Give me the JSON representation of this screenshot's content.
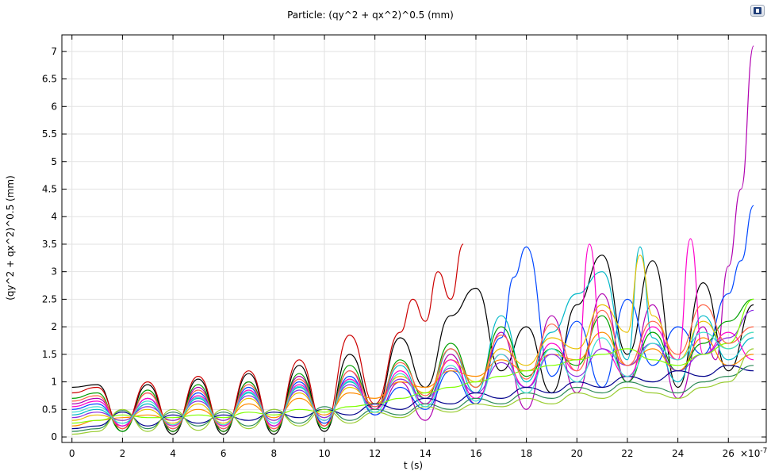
{
  "chart_data": {
    "type": "line",
    "title": "Particle: (qy^2 + qx^2)^0.5 (mm)",
    "xlabel": "t (s)",
    "ylabel": "(qy^2 + qx^2)^0.5 (mm)",
    "x_multiplier": "×10",
    "x_multiplier_exponent": "-7",
    "xlim": [
      -0.4,
      27.5
    ],
    "ylim": [
      -0.1,
      7.3
    ],
    "x_ticks": [
      0,
      2,
      4,
      6,
      8,
      10,
      12,
      14,
      16,
      18,
      20,
      22,
      24,
      26
    ],
    "y_ticks": [
      0,
      0.5,
      1,
      1.5,
      2,
      2.5,
      3,
      3.5,
      4,
      4.5,
      5,
      5.5,
      6,
      6.5,
      7
    ],
    "x_tick_labels": [
      "0",
      "2",
      "4",
      "6",
      "8",
      "10",
      "12",
      "14",
      "16",
      "18",
      "20",
      "22",
      "24",
      "26"
    ],
    "y_tick_labels": [
      "0",
      "0.5",
      "1",
      "1.5",
      "2",
      "2.5",
      "3",
      "3.5",
      "4",
      "4.5",
      "5",
      "5.5",
      "6",
      "6.5",
      "7"
    ],
    "grid": true,
    "legend": "none",
    "series": [
      {
        "color": "#000000",
        "x": [
          0,
          1,
          2,
          3,
          4,
          5,
          6,
          7,
          8,
          9,
          10,
          11,
          12,
          13,
          14,
          15,
          16,
          17,
          18,
          19,
          20,
          21,
          22,
          23,
          24,
          25,
          26,
          27
        ],
        "y": [
          0.9,
          0.95,
          0.1,
          0.95,
          0.05,
          1.05,
          0.05,
          1.15,
          0.05,
          1.3,
          0.1,
          1.5,
          0.5,
          1.8,
          0.9,
          2.2,
          2.7,
          1.2,
          2.0,
          0.8,
          2.4,
          3.3,
          1.5,
          3.2,
          0.9,
          2.8,
          1.2,
          2.4
        ]
      },
      {
        "color": "#cc0000",
        "x": [
          0,
          1,
          2,
          3,
          4,
          5,
          6,
          7,
          8,
          9,
          10,
          11,
          12,
          13,
          13.5,
          14,
          14.5,
          15,
          15.5
        ],
        "y": [
          0.8,
          0.9,
          0.15,
          1.0,
          0.1,
          1.1,
          0.1,
          1.2,
          0.1,
          1.4,
          0.2,
          1.85,
          0.6,
          1.9,
          2.5,
          2.1,
          3.0,
          2.5,
          3.5
        ]
      },
      {
        "color": "#b000b0",
        "x": [
          0,
          1,
          2,
          3,
          4,
          5,
          6,
          7,
          8,
          9,
          10,
          11,
          12,
          13,
          14,
          15,
          16,
          17,
          18,
          19,
          20,
          21,
          22,
          23,
          24,
          25,
          25.5,
          26,
          26.5,
          27
        ],
        "y": [
          0.6,
          0.7,
          0.2,
          0.8,
          0.1,
          0.9,
          0.1,
          1.0,
          0.15,
          1.1,
          0.2,
          1.2,
          0.4,
          1.0,
          0.3,
          1.5,
          0.6,
          1.9,
          0.5,
          2.2,
          0.8,
          2.6,
          1.0,
          2.4,
          0.7,
          2.0,
          1.4,
          3.1,
          4.5,
          7.1
        ]
      },
      {
        "color": "#0047ff",
        "x": [
          0,
          1,
          2,
          3,
          4,
          5,
          6,
          7,
          8,
          9,
          10,
          11,
          12,
          13,
          14,
          15,
          16,
          17,
          17.5,
          18,
          19,
          20,
          21,
          22,
          23,
          24,
          25,
          26,
          26.5,
          27
        ],
        "y": [
          0.5,
          0.6,
          0.2,
          0.7,
          0.15,
          0.8,
          0.15,
          0.9,
          0.2,
          1.0,
          0.25,
          1.1,
          0.4,
          0.9,
          0.5,
          1.2,
          0.6,
          1.8,
          2.9,
          3.45,
          1.1,
          2.1,
          0.9,
          2.5,
          1.3,
          2.0,
          1.5,
          2.6,
          3.2,
          4.2
        ]
      },
      {
        "color": "#00b8c8",
        "x": [
          0,
          1,
          2,
          3,
          4,
          5,
          6,
          7,
          8,
          9,
          10,
          11,
          12,
          13,
          14,
          15,
          16,
          17,
          18,
          19,
          20,
          21,
          22,
          22.5,
          23,
          24,
          25,
          26,
          27
        ],
        "y": [
          0.4,
          0.5,
          0.25,
          0.6,
          0.2,
          0.7,
          0.2,
          0.8,
          0.2,
          0.9,
          0.3,
          1.0,
          0.5,
          1.3,
          0.6,
          1.6,
          0.8,
          2.2,
          1.0,
          1.9,
          2.6,
          3.0,
          1.4,
          3.45,
          1.8,
          1.0,
          2.2,
          1.4,
          1.8
        ]
      },
      {
        "color": "#00a000",
        "x": [
          0,
          1,
          2,
          3,
          4,
          5,
          6,
          7,
          8,
          9,
          10,
          11,
          12,
          13,
          14,
          15,
          16,
          17,
          18,
          19,
          20,
          21,
          22,
          23,
          24,
          25,
          26,
          27
        ],
        "y": [
          0.7,
          0.8,
          0.1,
          0.85,
          0.1,
          0.95,
          0.1,
          1.0,
          0.1,
          1.15,
          0.15,
          1.3,
          0.5,
          1.4,
          0.7,
          1.7,
          0.9,
          2.0,
          1.1,
          1.6,
          1.3,
          2.2,
          1.0,
          1.9,
          1.2,
          1.7,
          2.1,
          2.5
        ]
      },
      {
        "color": "#e8c000",
        "x": [
          0,
          1,
          2,
          3,
          4,
          5,
          6,
          7,
          8,
          9,
          10,
          11,
          12,
          13,
          14,
          15,
          16,
          17,
          18,
          19,
          20,
          21,
          22,
          22.5,
          23,
          24,
          25,
          26,
          27
        ],
        "y": [
          0.3,
          0.4,
          0.3,
          0.5,
          0.25,
          0.6,
          0.25,
          0.7,
          0.3,
          0.8,
          0.35,
          0.9,
          0.6,
          1.1,
          0.8,
          1.4,
          1.0,
          1.6,
          1.3,
          1.8,
          1.6,
          2.4,
          1.9,
          3.3,
          2.2,
          1.4,
          2.1,
          1.6,
          1.9
        ]
      },
      {
        "color": "#ff8c00",
        "x": [
          0,
          1,
          2,
          3,
          4,
          5,
          6,
          7,
          8,
          9,
          10,
          11,
          12,
          13,
          14,
          15,
          16,
          17,
          18,
          19,
          20,
          21,
          22,
          23,
          24,
          25,
          26,
          27
        ],
        "y": [
          0.2,
          0.3,
          0.35,
          0.4,
          0.3,
          0.5,
          0.3,
          0.6,
          0.35,
          0.7,
          0.4,
          0.8,
          0.7,
          1.0,
          0.9,
          1.2,
          1.1,
          1.4,
          1.2,
          1.5,
          1.4,
          1.9,
          1.3,
          1.6,
          1.2,
          1.8,
          1.3,
          1.5
        ]
      },
      {
        "color": "#ff00cc",
        "x": [
          0,
          1,
          2,
          3,
          4,
          5,
          6,
          7,
          8,
          9,
          10,
          11,
          12,
          13,
          14,
          15,
          16,
          17,
          18,
          19,
          20,
          20.5,
          21,
          22,
          23,
          24,
          24.5,
          25,
          26,
          27
        ],
        "y": [
          0.55,
          0.65,
          0.2,
          0.7,
          0.2,
          0.75,
          0.2,
          0.85,
          0.2,
          0.95,
          0.3,
          1.05,
          0.5,
          1.2,
          0.6,
          1.4,
          0.7,
          1.5,
          0.9,
          1.7,
          1.2,
          3.5,
          1.6,
          1.1,
          2.0,
          1.4,
          3.6,
          1.5,
          1.9,
          1.4
        ]
      },
      {
        "color": "#8a2be2",
        "x": [
          0,
          1,
          2,
          3,
          4,
          5,
          6,
          7,
          8,
          9,
          10,
          11,
          12,
          13,
          14,
          15,
          16,
          17,
          18,
          19,
          20,
          21,
          22,
          23,
          24,
          25,
          26,
          27
        ],
        "y": [
          0.35,
          0.45,
          0.3,
          0.55,
          0.3,
          0.65,
          0.3,
          0.75,
          0.3,
          0.85,
          0.35,
          0.95,
          0.55,
          1.05,
          0.7,
          1.25,
          0.8,
          1.35,
          0.9,
          1.5,
          1.1,
          1.6,
          1.3,
          1.7,
          1.2,
          1.5,
          1.8,
          2.3
        ]
      },
      {
        "color": "#7fff00",
        "x": [
          0,
          1,
          2,
          3,
          4,
          5,
          6,
          7,
          8,
          9,
          10,
          11,
          12,
          13,
          14,
          15,
          16,
          17,
          18,
          19,
          20,
          21,
          22,
          23,
          24,
          25,
          26,
          27
        ],
        "y": [
          0.25,
          0.3,
          0.4,
          0.35,
          0.35,
          0.4,
          0.35,
          0.45,
          0.4,
          0.5,
          0.45,
          0.55,
          0.6,
          0.7,
          0.8,
          0.9,
          1.0,
          1.1,
          1.2,
          1.3,
          1.4,
          1.5,
          1.6,
          1.4,
          1.3,
          1.5,
          1.7,
          2.5
        ]
      },
      {
        "color": "#00008b",
        "x": [
          0,
          1,
          2,
          3,
          4,
          5,
          6,
          7,
          8,
          9,
          10,
          11,
          12,
          13,
          14,
          15,
          16,
          17,
          18,
          19,
          20,
          21,
          22,
          23,
          24,
          25,
          26,
          27
        ],
        "y": [
          0.15,
          0.2,
          0.45,
          0.2,
          0.4,
          0.25,
          0.4,
          0.3,
          0.45,
          0.35,
          0.5,
          0.4,
          0.6,
          0.5,
          0.7,
          0.6,
          0.8,
          0.7,
          0.9,
          0.8,
          1.0,
          0.9,
          1.1,
          1.0,
          1.2,
          1.1,
          1.3,
          1.2
        ]
      },
      {
        "color": "#2e8b57",
        "x": [
          0,
          1,
          2,
          3,
          4,
          5,
          6,
          7,
          8,
          9,
          10,
          11,
          12,
          13,
          14,
          15,
          16,
          17,
          18,
          19,
          20,
          21,
          22,
          23,
          24,
          25,
          26,
          27
        ],
        "y": [
          0.1,
          0.15,
          0.48,
          0.15,
          0.45,
          0.2,
          0.45,
          0.2,
          0.5,
          0.25,
          0.55,
          0.3,
          0.5,
          0.4,
          0.6,
          0.5,
          0.7,
          0.6,
          0.8,
          0.7,
          0.9,
          0.8,
          1.0,
          0.9,
          0.8,
          1.0,
          1.1,
          1.3
        ]
      },
      {
        "color": "#9acd32",
        "x": [
          0,
          1,
          2,
          3,
          4,
          5,
          6,
          7,
          8,
          9,
          10,
          11,
          12,
          13,
          14,
          15,
          16,
          17,
          18,
          19,
          20,
          21,
          22,
          23,
          24,
          25,
          26,
          27
        ],
        "y": [
          0.05,
          0.1,
          0.5,
          0.1,
          0.5,
          0.12,
          0.5,
          0.15,
          0.5,
          0.2,
          0.5,
          0.25,
          0.45,
          0.35,
          0.55,
          0.45,
          0.6,
          0.55,
          0.7,
          0.6,
          0.8,
          0.7,
          0.9,
          0.8,
          0.7,
          0.9,
          1.0,
          1.6
        ]
      },
      {
        "color": "#ff6347",
        "x": [
          0,
          1,
          2,
          3,
          4,
          5,
          6,
          7,
          8,
          9,
          10,
          11,
          12,
          13,
          14,
          15,
          16,
          17,
          18,
          19,
          20,
          21,
          22,
          23,
          24,
          25,
          26,
          27
        ],
        "y": [
          0.65,
          0.75,
          0.15,
          0.8,
          0.15,
          0.85,
          0.15,
          0.95,
          0.15,
          1.05,
          0.2,
          1.2,
          0.55,
          1.35,
          0.75,
          1.6,
          0.9,
          1.85,
          1.05,
          2.05,
          1.2,
          2.3,
          1.3,
          2.1,
          1.5,
          2.4,
          1.7,
          2.0
        ]
      },
      {
        "color": "#40e0d0",
        "x": [
          0,
          1,
          2,
          3,
          4,
          5,
          6,
          7,
          8,
          9,
          10,
          11,
          12,
          13,
          14,
          15,
          16,
          17,
          18,
          19,
          20,
          21,
          22,
          23,
          24,
          25,
          26,
          27
        ],
        "y": [
          0.45,
          0.55,
          0.25,
          0.65,
          0.22,
          0.72,
          0.22,
          0.82,
          0.25,
          0.92,
          0.3,
          1.02,
          0.45,
          1.15,
          0.55,
          1.3,
          0.65,
          1.5,
          0.8,
          1.6,
          1.0,
          1.8,
          1.1,
          1.7,
          1.4,
          1.9,
          1.6,
          1.9
        ]
      }
    ]
  }
}
